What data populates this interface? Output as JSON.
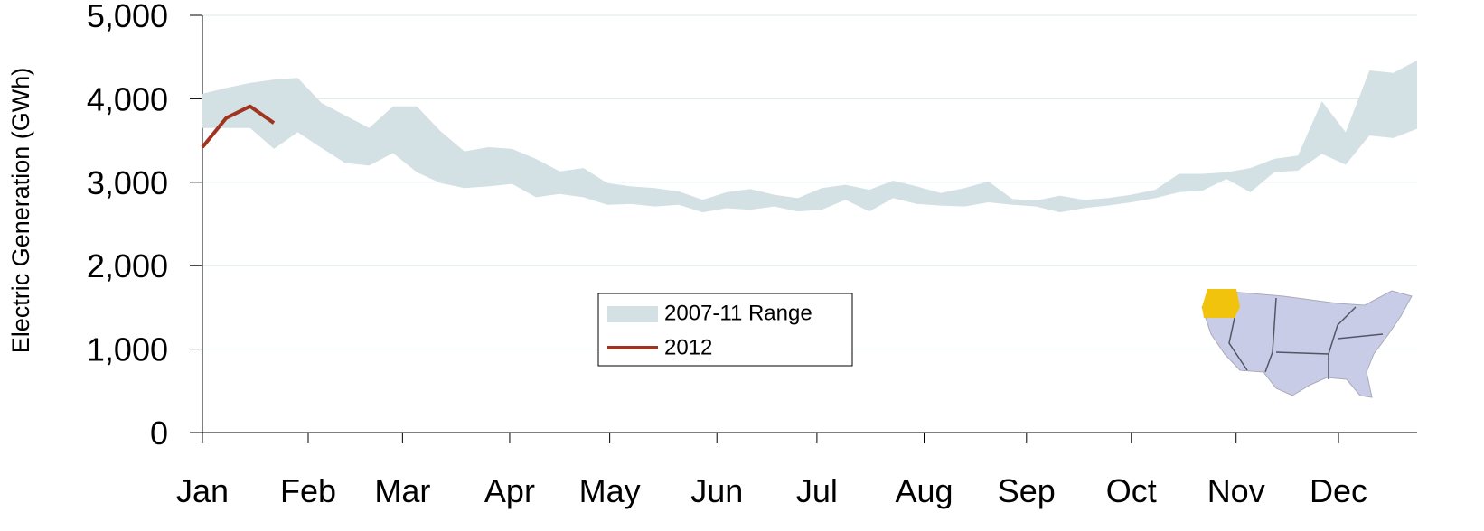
{
  "chart_data": {
    "type": "line",
    "y_label": "Electric Generation (GWh)",
    "x": [
      1,
      2,
      3,
      4,
      5,
      6,
      7,
      8,
      9,
      10,
      11,
      12,
      13,
      14,
      15,
      16,
      17,
      18,
      19,
      20,
      21,
      22,
      23,
      24,
      25,
      26,
      27,
      28,
      29,
      30,
      31,
      32,
      33,
      34,
      35,
      36,
      37,
      38,
      39,
      40,
      41,
      42,
      43,
      44,
      45,
      46,
      47,
      48,
      49,
      50,
      51,
      52
    ],
    "xlim": [
      1,
      52
    ],
    "xticks": [
      {
        "value": 1,
        "label": "Jan"
      },
      {
        "value": 5.44,
        "label": "Feb"
      },
      {
        "value": 9.4,
        "label": "Mar"
      },
      {
        "value": 13.9,
        "label": "Apr"
      },
      {
        "value": 18.1,
        "label": "May"
      },
      {
        "value": 22.6,
        "label": "Jun"
      },
      {
        "value": 26.8,
        "label": "Jul"
      },
      {
        "value": 31.3,
        "label": "Aug"
      },
      {
        "value": 35.6,
        "label": "Sep"
      },
      {
        "value": 40.0,
        "label": "Oct"
      },
      {
        "value": 44.4,
        "label": "Nov"
      },
      {
        "value": 48.7,
        "label": "Dec"
      }
    ],
    "ylim": [
      0,
      5000
    ],
    "yticks": [
      0,
      {
        "value": 1000,
        "label": "1,000"
      },
      {
        "value": 2000,
        "label": "2,000"
      },
      {
        "value": 3000,
        "label": "3,000"
      },
      {
        "value": 4000,
        "label": "4,000"
      },
      {
        "value": 5000,
        "label": "5,000"
      }
    ],
    "grid": true,
    "series": [
      {
        "name": "2007-11 Range",
        "color": "#d3e1e4",
        "low": [
          3650,
          3650,
          3650,
          3400,
          3600,
          3410,
          3230,
          3200,
          3350,
          3120,
          2990,
          2930,
          2950,
          2980,
          2820,
          2860,
          2820,
          2730,
          2740,
          2710,
          2730,
          2640,
          2690,
          2670,
          2710,
          2650,
          2670,
          2790,
          2650,
          2810,
          2740,
          2720,
          2710,
          2760,
          2730,
          2710,
          2640,
          2690,
          2720,
          2760,
          2810,
          2880,
          2900,
          3040,
          2880,
          3120,
          3140,
          3340,
          3210,
          3560,
          3530,
          3640
        ],
        "high": [
          4060,
          4130,
          4190,
          4230,
          4250,
          3950,
          3800,
          3650,
          3910,
          3910,
          3610,
          3370,
          3420,
          3400,
          3280,
          3130,
          3170,
          2990,
          2950,
          2930,
          2890,
          2790,
          2880,
          2920,
          2850,
          2810,
          2930,
          2970,
          2910,
          3020,
          2950,
          2870,
          2930,
          3010,
          2800,
          2780,
          2840,
          2790,
          2810,
          2850,
          2910,
          3100,
          3100,
          3120,
          3170,
          3280,
          3320,
          3970,
          3600,
          4340,
          4310,
          4460
        ]
      },
      {
        "name": "2012",
        "color": "#a0341f",
        "values": [
          3420,
          3770,
          3910,
          3710,
          null,
          null,
          null,
          null,
          null,
          null,
          null,
          null,
          null,
          null,
          null,
          null,
          null,
          null,
          null,
          null,
          null,
          null,
          null,
          null,
          null,
          null,
          null,
          null,
          null,
          null,
          null,
          null,
          null,
          null,
          null,
          null,
          null,
          null,
          null,
          null,
          null,
          null,
          null,
          null,
          null,
          null,
          null,
          null,
          null,
          null,
          null,
          null
        ]
      }
    ]
  }
}
